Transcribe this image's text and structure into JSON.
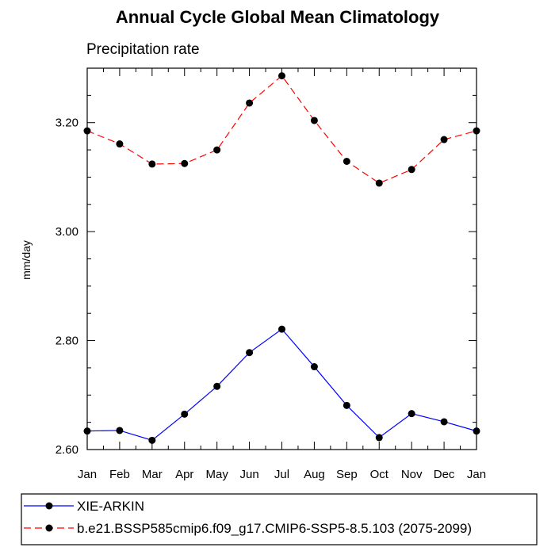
{
  "chart_data": {
    "type": "line",
    "title": "Annual Cycle Global Mean Climatology",
    "subtitle": "Precipitation rate",
    "xlabel": "",
    "ylabel": "mm/day",
    "categories": [
      "Jan",
      "Feb",
      "Mar",
      "Apr",
      "May",
      "Jun",
      "Jul",
      "Aug",
      "Sep",
      "Oct",
      "Nov",
      "Dec",
      "Jan"
    ],
    "yticks": [
      "2.60",
      "2.80",
      "3.00",
      "3.20"
    ],
    "ylim": [
      2.6,
      3.3
    ],
    "grid": false,
    "legend_position": "bottom",
    "series": [
      {
        "name": "XIE-ARKIN",
        "color": "#0000ff",
        "line_style": "solid",
        "marker": "filled-circle",
        "values": [
          2.634,
          2.635,
          2.617,
          2.665,
          2.716,
          2.778,
          2.821,
          2.752,
          2.681,
          2.622,
          2.666,
          2.651,
          2.634
        ]
      },
      {
        "name": "b.e21.BSSP585cmip6.f09_g17.CMIP6-SSP5-8.5.103 (2075-2099)",
        "color": "#ff0000",
        "line_style": "dashed",
        "marker": "filled-circle",
        "values": [
          3.185,
          3.161,
          3.124,
          3.125,
          3.15,
          3.236,
          3.286,
          3.204,
          3.129,
          3.089,
          3.114,
          3.169,
          3.185
        ]
      }
    ]
  }
}
